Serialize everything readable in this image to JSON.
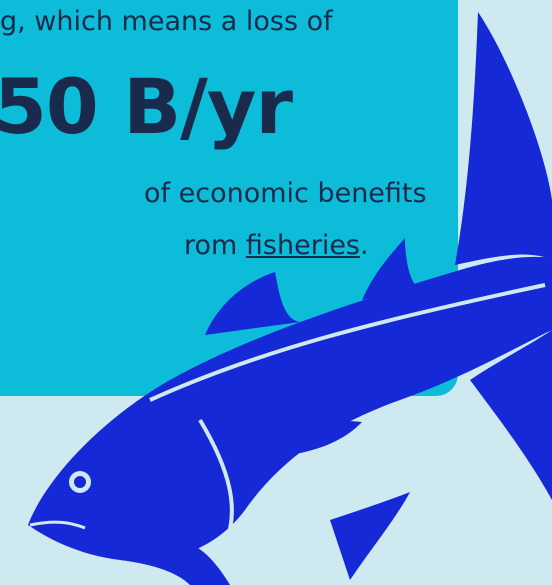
{
  "text": {
    "line1": "g, which means a loss of",
    "headline": "50 B/yr",
    "line2": "of economic benefits",
    "line3_prefix": "rom ",
    "line3_link": "fisheries",
    "line3_suffix": "."
  }
}
